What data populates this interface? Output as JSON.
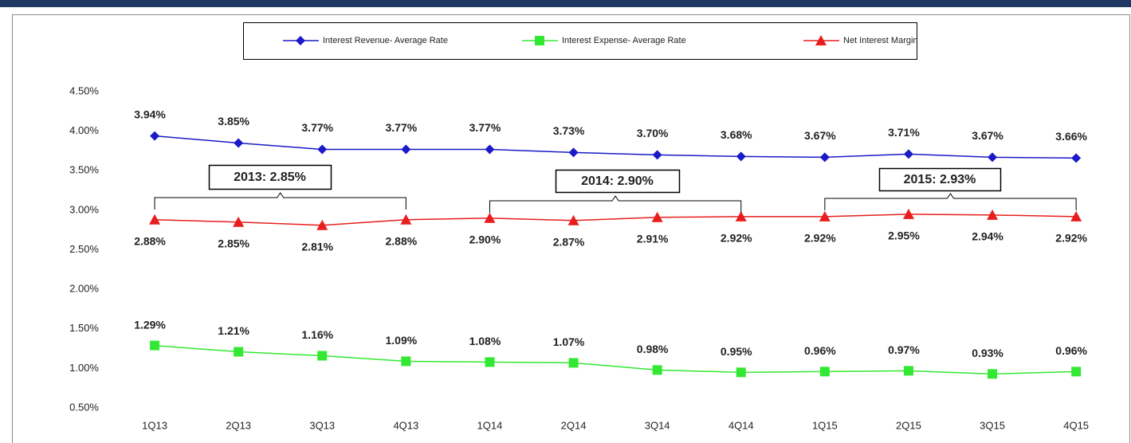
{
  "chart_data": {
    "type": "line",
    "categories": [
      "1Q13",
      "2Q13",
      "3Q13",
      "4Q13",
      "1Q14",
      "2Q14",
      "3Q14",
      "4Q14",
      "1Q15",
      "2Q15",
      "3Q15",
      "4Q15"
    ],
    "series": [
      {
        "name": "Interest Revenue- Average Rate",
        "color": "#1a1ac8",
        "marker": "diamond",
        "values": [
          3.94,
          3.85,
          3.77,
          3.77,
          3.77,
          3.73,
          3.7,
          3.68,
          3.67,
          3.71,
          3.67,
          3.66
        ],
        "value_labels": [
          "3.94%",
          "3.85%",
          "3.77%",
          "3.77%",
          "3.77%",
          "3.73%",
          "3.70%",
          "3.68%",
          "3.67%",
          "3.71%",
          "3.67%",
          "3.66%"
        ]
      },
      {
        "name": "Interest Expense- Average Rate",
        "color": "#33e833",
        "marker": "square",
        "values": [
          1.29,
          1.21,
          1.16,
          1.09,
          1.08,
          1.07,
          0.98,
          0.95,
          0.96,
          0.97,
          0.93,
          0.96
        ],
        "value_labels": [
          "1.29%",
          "1.21%",
          "1.16%",
          "1.09%",
          "1.08%",
          "1.07%",
          "0.98%",
          "0.95%",
          "0.96%",
          "0.97%",
          "0.93%",
          "0.96%"
        ]
      },
      {
        "name": "Net Interest Margin",
        "color": "#e81e1e",
        "marker": "triangle",
        "values": [
          2.88,
          2.85,
          2.81,
          2.88,
          2.9,
          2.87,
          2.91,
          2.92,
          2.92,
          2.95,
          2.94,
          2.92
        ],
        "value_labels": [
          "2.88%",
          "2.85%",
          "2.81%",
          "2.88%",
          "2.90%",
          "2.87%",
          "2.91%",
          "2.92%",
          "2.92%",
          "2.95%",
          "2.94%",
          "2.92%"
        ]
      }
    ],
    "ylim": [
      0.5,
      4.5
    ],
    "yticks": [
      {
        "value": 0.5,
        "label": "0.50%"
      },
      {
        "value": 1.0,
        "label": "1.00%"
      },
      {
        "value": 1.5,
        "label": "1.50%"
      },
      {
        "value": 2.0,
        "label": "2.00%"
      },
      {
        "value": 2.5,
        "label": "2.50%"
      },
      {
        "value": 3.0,
        "label": "3.00%"
      },
      {
        "value": 3.5,
        "label": "3.50%"
      },
      {
        "value": 4.0,
        "label": "4.00%"
      },
      {
        "value": 4.5,
        "label": "4.50%"
      }
    ],
    "grid": false,
    "legend": "top",
    "annotations": [
      "2013: 2.85%",
      "2014: 2.90%",
      "2015: 2.93%"
    ]
  }
}
